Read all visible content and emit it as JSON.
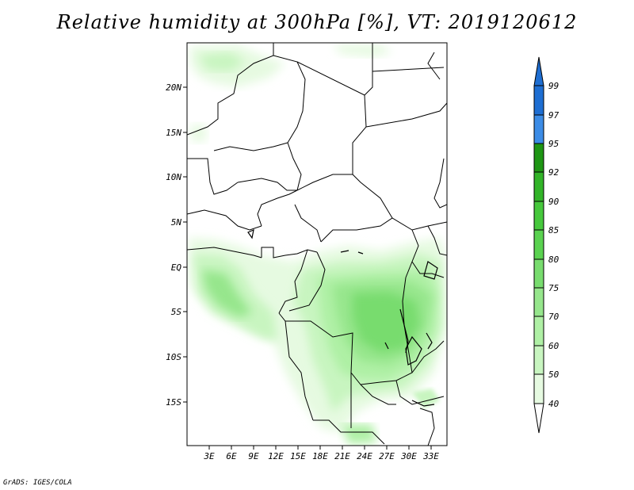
{
  "title": "Relative humidity at 300hPa [%], VT: 2019120612",
  "footer": "GrADS: IGES/COLA",
  "map": {
    "lat_labels": [
      "20N",
      "15N",
      "10N",
      "5N",
      "EQ",
      "5S",
      "10S",
      "15S"
    ],
    "lon_labels": [
      "3E",
      "6E",
      "9E",
      "12E",
      "15E",
      "18E",
      "21E",
      "24E",
      "27E",
      "30E",
      "33E"
    ]
  },
  "colorbar": {
    "labels": [
      "99",
      "97",
      "95",
      "92",
      "90",
      "85",
      "80",
      "75",
      "70",
      "60",
      "50",
      "40"
    ],
    "colors": {
      "99": "#1e6ed2",
      "97": "#3c8ce6",
      "95": "#1e9614",
      "92": "#32b428",
      "90": "#46c83c",
      "85": "#5ad250",
      "80": "#78dc6e",
      "75": "#96e68c",
      "70": "#aff0a5",
      "60": "#c8f5c0",
      "50": "#e6fae1",
      "40": "#ffffff"
    }
  }
}
